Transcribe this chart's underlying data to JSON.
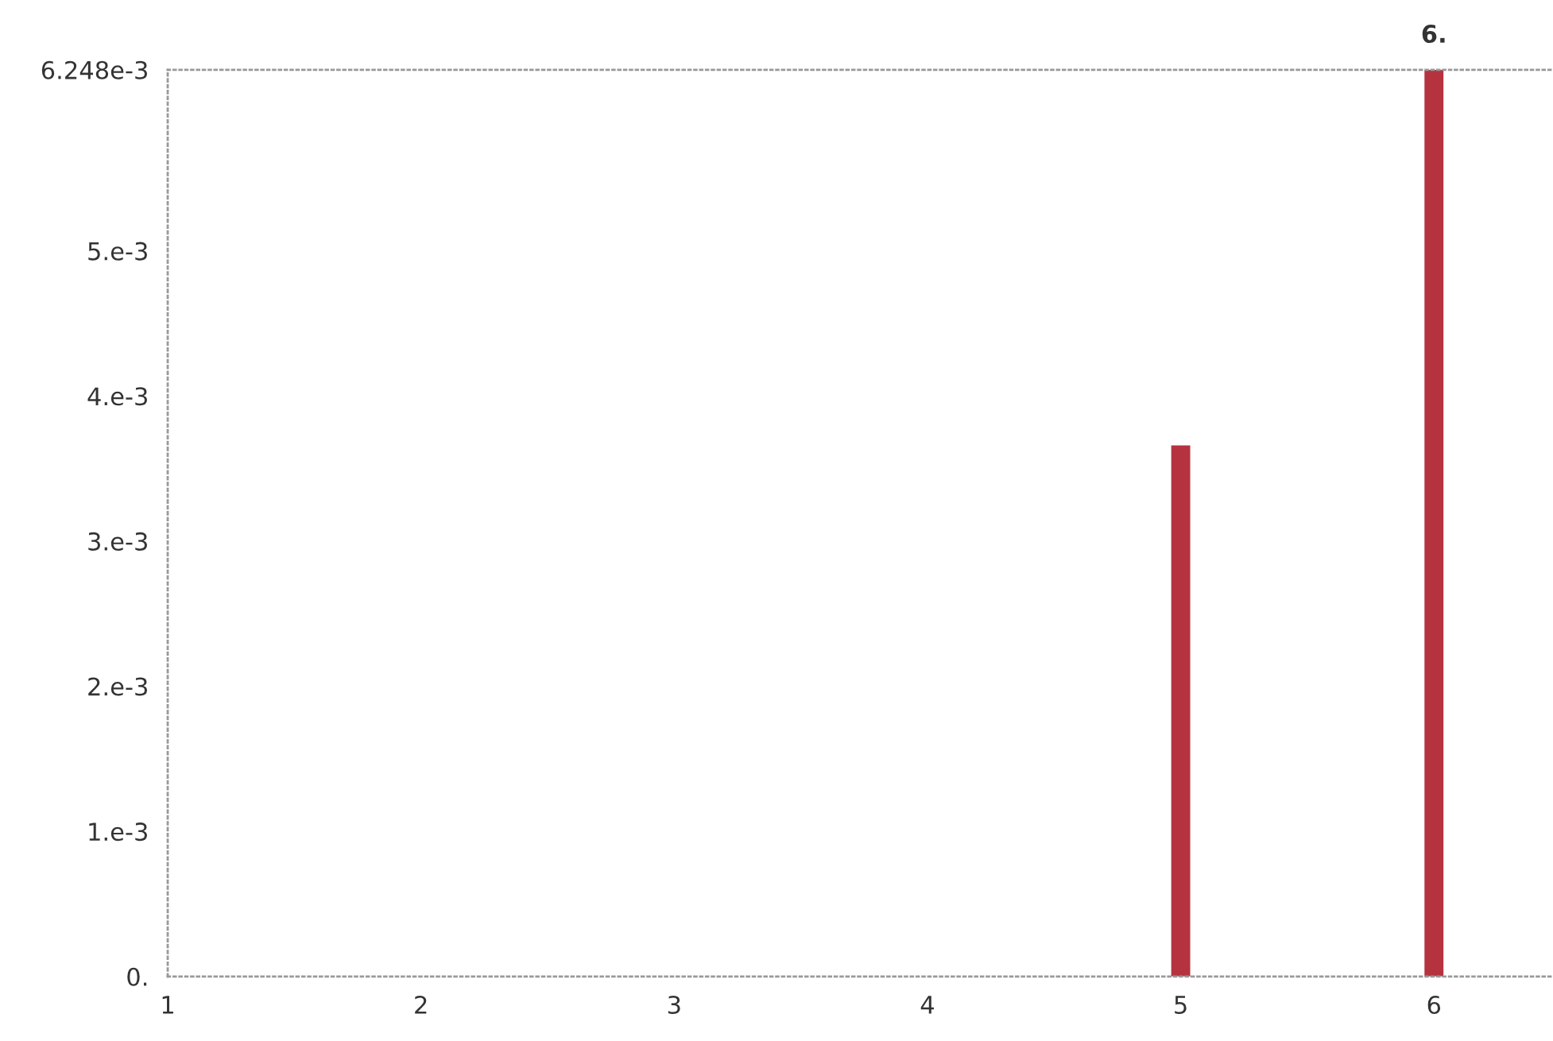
{
  "chart_data": {
    "type": "bar",
    "x": [
      5,
      6
    ],
    "values": [
      0.00366,
      0.006248
    ],
    "color": "#b5333f",
    "xlim": [
      1,
      6.47
    ],
    "xticks": [
      1,
      2,
      3,
      4,
      5,
      6
    ],
    "ylim": [
      0,
      0.006248
    ],
    "yticks": [
      {
        "value": 0,
        "label": "0."
      },
      {
        "value": 0.001,
        "label": "1.e-3"
      },
      {
        "value": 0.002,
        "label": "2.e-3"
      },
      {
        "value": 0.003,
        "label": "3.e-3"
      },
      {
        "value": 0.004,
        "label": "4.e-3"
      },
      {
        "value": 0.005,
        "label": "5.e-3"
      },
      {
        "value": 0.006248,
        "label": "6.248e-3"
      }
    ],
    "annotations": [
      {
        "text": "6.",
        "x": 6,
        "y": 0.006248
      }
    ],
    "grid": false
  }
}
